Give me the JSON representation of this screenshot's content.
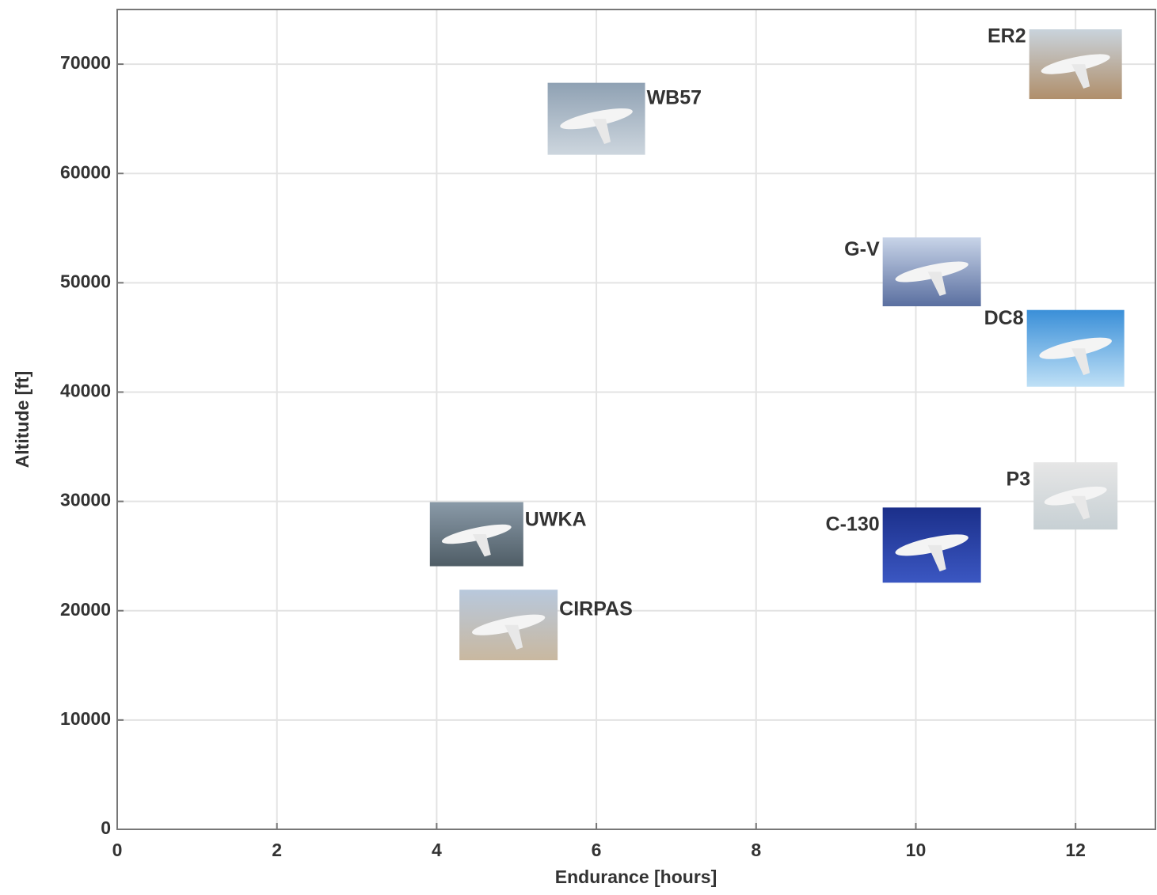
{
  "chart_data": {
    "type": "scatter",
    "xlabel": "Endurance [hours]",
    "ylabel": "Altitude [ft]",
    "labels": [
      "ER2",
      "WB57",
      "G-V",
      "DC8",
      "P3",
      "C-130",
      "UWKA",
      "CIRPAS"
    ],
    "x": [
      12,
      6,
      10.2,
      12,
      12,
      10.2,
      4.5,
      4.9
    ],
    "values": [
      70000,
      65000,
      51000,
      44000,
      30500,
      26000,
      27000,
      18700
    ],
    "xlim": [
      0,
      13
    ],
    "ylim": [
      0,
      75000
    ],
    "xticks": [
      0,
      2,
      4,
      6,
      8,
      10,
      12
    ],
    "yticks": [
      0,
      10000,
      20000,
      30000,
      40000,
      50000,
      60000,
      70000
    ],
    "grid": true
  }
}
